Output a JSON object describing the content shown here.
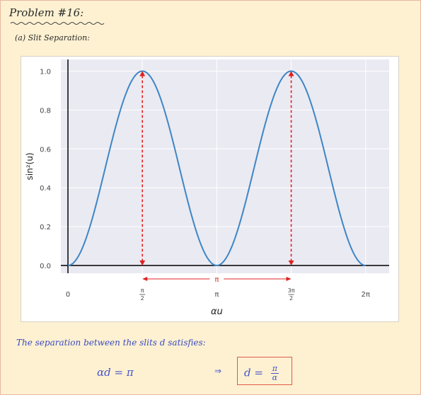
{
  "header": {
    "title": "Problem #16:",
    "subtitle": "(a) Slit Separation:"
  },
  "chart_data": {
    "type": "line",
    "function": "sin^2(u)",
    "x_range": [
      0,
      6.2832
    ],
    "ylim": [
      0,
      1.0
    ],
    "yticks": [
      0.0,
      0.2,
      0.4,
      0.6,
      0.8,
      1.0
    ],
    "ytick_labels": [
      "0.0",
      "0.2",
      "0.4",
      "0.6",
      "0.8",
      "1.0"
    ],
    "xticks": [
      0,
      1.5708,
      3.1416,
      4.7124,
      6.2832
    ],
    "xtick_labels": [
      "0",
      "π/2",
      "π",
      "3π/2",
      "2π"
    ],
    "ylabel": "sin²(u)",
    "xlabel": "αu",
    "grid": true,
    "line_color": "#3d86c6",
    "annotations": {
      "peak_markers_x": [
        1.5708,
        4.7124
      ],
      "separation_label": "π",
      "annotation_color": "#e02020"
    }
  },
  "footer": {
    "statement": "The separation between the slits d satisfies:",
    "equation_left": "αd = π",
    "arrow": "⇒",
    "equation_right_lhs": "d =",
    "equation_right_num": "π",
    "equation_right_den": "α"
  }
}
